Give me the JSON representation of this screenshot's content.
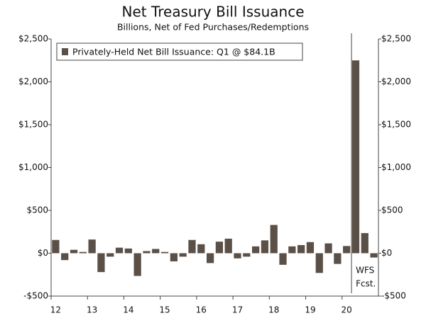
{
  "chart_data": {
    "type": "bar",
    "title": "Net Treasury Bill Issuance",
    "subtitle": "Billions, Net of Fed Purchases/Redemptions",
    "legend": "Privately-Held Net Bill Issuance: Q1 @ $84.1B",
    "legend_position": "upper left",
    "annotation": [
      "WFS",
      "Fcst."
    ],
    "color": "#5b5047",
    "categories": [
      "12",
      null,
      null,
      null,
      "13",
      null,
      null,
      null,
      "14",
      null,
      null,
      null,
      "15",
      null,
      null,
      null,
      "16",
      null,
      null,
      null,
      "17",
      null,
      null,
      null,
      "18",
      null,
      null,
      null,
      "19",
      null,
      null,
      null,
      "20",
      null,
      null,
      null
    ],
    "values": [
      155,
      -80,
      40,
      15,
      160,
      -220,
      -40,
      65,
      55,
      -265,
      25,
      50,
      15,
      -95,
      -40,
      155,
      105,
      -115,
      135,
      170,
      -60,
      -40,
      80,
      150,
      330,
      -135,
      80,
      95,
      130,
      -230,
      115,
      -125,
      84.1,
      2250,
      235,
      -50
    ],
    "ylim": [
      -500,
      2500
    ],
    "yticks": [
      {
        "value": -500,
        "label": "-$500"
      },
      {
        "value": 0,
        "label": "$0"
      },
      {
        "value": 500,
        "label": "$500"
      },
      {
        "value": 1000,
        "label": "$1,000"
      },
      {
        "value": 1500,
        "label": "$1,500"
      },
      {
        "value": 2000,
        "label": "$2,000"
      },
      {
        "value": 2500,
        "label": "$2,500"
      }
    ],
    "grid": false
  }
}
